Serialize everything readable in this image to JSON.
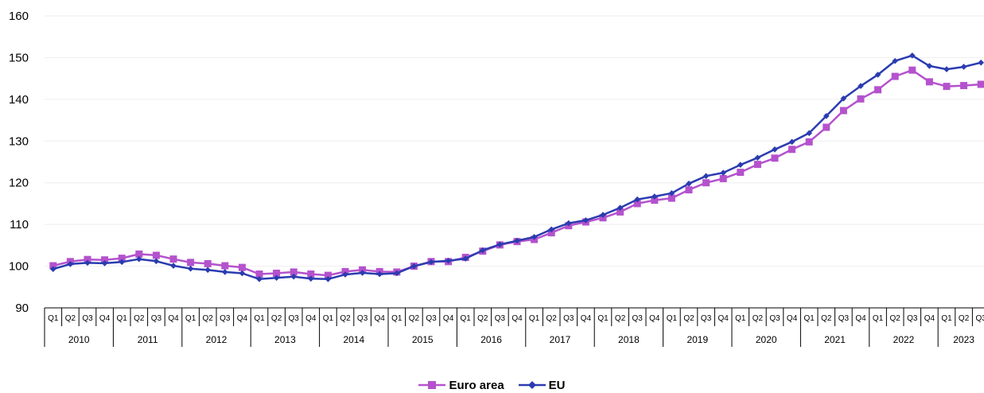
{
  "chart_data": {
    "type": "line",
    "ylim": [
      90,
      160
    ],
    "yticks": [
      90,
      100,
      110,
      120,
      130,
      140,
      150,
      160
    ],
    "quarters": [
      "Q1",
      "Q2",
      "Q3",
      "Q4"
    ],
    "last_visible_quarter_label": "Q3",
    "years": [
      "2010",
      "2011",
      "2012",
      "2013",
      "2014",
      "2015",
      "2016",
      "2017",
      "2018",
      "2019",
      "2020",
      "2021",
      "2022",
      "2023"
    ],
    "x": [
      "2010-Q1",
      "2010-Q2",
      "2010-Q3",
      "2010-Q4",
      "2011-Q1",
      "2011-Q2",
      "2011-Q3",
      "2011-Q4",
      "2012-Q1",
      "2012-Q2",
      "2012-Q3",
      "2012-Q4",
      "2013-Q1",
      "2013-Q2",
      "2013-Q3",
      "2013-Q4",
      "2014-Q1",
      "2014-Q2",
      "2014-Q3",
      "2014-Q4",
      "2015-Q1",
      "2015-Q2",
      "2015-Q3",
      "2015-Q4",
      "2016-Q1",
      "2016-Q2",
      "2016-Q3",
      "2016-Q4",
      "2017-Q1",
      "2017-Q2",
      "2017-Q3",
      "2017-Q4",
      "2018-Q1",
      "2018-Q2",
      "2018-Q3",
      "2018-Q4",
      "2019-Q1",
      "2019-Q2",
      "2019-Q3",
      "2019-Q4",
      "2020-Q1",
      "2020-Q2",
      "2020-Q3",
      "2020-Q4",
      "2021-Q1",
      "2021-Q2",
      "2021-Q3",
      "2021-Q4",
      "2022-Q1",
      "2022-Q2",
      "2022-Q3",
      "2022-Q4",
      "2023-Q1",
      "2023-Q2",
      "2023-Q3"
    ],
    "series": [
      {
        "name": "Euro area",
        "color": "#b452cd",
        "marker": "square",
        "values": [
          100.1,
          101.1,
          101.6,
          101.5,
          101.9,
          102.9,
          102.6,
          101.7,
          100.9,
          100.6,
          100.1,
          99.7,
          98.1,
          98.3,
          98.6,
          98.1,
          97.8,
          98.7,
          99.1,
          98.7,
          98.6,
          100.0,
          101.1,
          101.1,
          102.1,
          103.6,
          105.1,
          105.9,
          106.4,
          108.0,
          109.7,
          110.6,
          111.6,
          113.0,
          115.0,
          115.8,
          116.3,
          118.3,
          120.0,
          121.0,
          122.5,
          124.4,
          125.9,
          128.0,
          129.8,
          133.3,
          137.3,
          140.1,
          142.3,
          145.5,
          147.0,
          144.2,
          143.1,
          143.3,
          143.6
        ]
      },
      {
        "name": "EU",
        "color": "#2b3cb0",
        "marker": "diamond",
        "values": [
          99.3,
          100.5,
          100.8,
          100.7,
          101.0,
          101.7,
          101.2,
          100.1,
          99.4,
          99.1,
          98.6,
          98.3,
          96.9,
          97.2,
          97.5,
          97.0,
          96.9,
          98.0,
          98.4,
          98.1,
          98.3,
          100.0,
          101.0,
          101.3,
          101.8,
          103.8,
          105.2,
          106.1,
          107.0,
          108.8,
          110.3,
          111.0,
          112.3,
          114.0,
          116.0,
          116.7,
          117.5,
          119.8,
          121.6,
          122.4,
          124.3,
          126.0,
          128.0,
          129.8,
          131.9,
          136.0,
          140.2,
          143.2,
          145.9,
          149.2,
          150.5,
          148.0,
          147.2,
          147.8,
          148.8
        ]
      }
    ]
  }
}
